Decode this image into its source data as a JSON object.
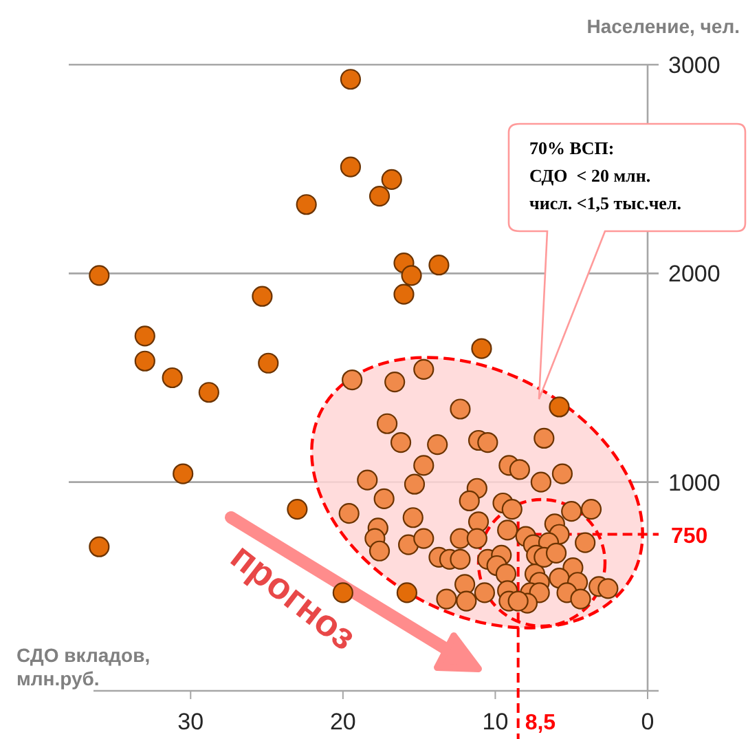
{
  "chart_data": {
    "type": "scatter",
    "xlabel": "СДО вкладов, млн.руб.",
    "ylabel": "Население, чел.",
    "xlim": [
      38,
      0
    ],
    "xticks": [
      30,
      20,
      10,
      0
    ],
    "ylim": [
      0,
      3000
    ],
    "yticks": [
      1000,
      2000,
      3000
    ],
    "grid": "y",
    "marker": "circle",
    "annotations": [
      "70% ВСП:",
      "СДО  < 20 млн.",
      "числ. <1,5 тыс.чел.",
      "прогноз"
    ],
    "ref_lines": [
      {
        "axis": "x",
        "value": 8.5,
        "label": "8,5",
        "color": "#ff0000",
        "line_style": "dashed"
      },
      {
        "axis": "y",
        "value": 750,
        "label": "750",
        "color": "#ff0000",
        "line_style": "dashed"
      }
    ],
    "series": [
      {
        "color": "#e36c09",
        "x": [
          19.5,
          19.5,
          16.8,
          17.6,
          22.4,
          36.0,
          16.0,
          13.7,
          15.5,
          16.0,
          25.3,
          33.0,
          33.0,
          24.9,
          31.2,
          10.9,
          28.8,
          5.8,
          30.5,
          23.0,
          36.0,
          20.0,
          15.8
        ],
        "values": [
          2930,
          2510,
          2450,
          2370,
          2330,
          1990,
          2050,
          2040,
          1990,
          1900,
          1890,
          1700,
          1580,
          1570,
          1500,
          1640,
          1430,
          1360,
          1040,
          870,
          690,
          470,
          470
        ]
      },
      {
        "color": "#f08a4b",
        "x": [
          19.4,
          16.6,
          14.7,
          12.3,
          17.1,
          16.2,
          13.8,
          11.1,
          10.5,
          6.8,
          14.7,
          9.1,
          8.4,
          5.6,
          18.4,
          15.3,
          7.0,
          19.6,
          17.3,
          11.2,
          11.7,
          9.5,
          8.9,
          15.4,
          17.7,
          17.9,
          17.6,
          15.7,
          14.7,
          11.1,
          12.3,
          9.2,
          8.0,
          6.1,
          5.0,
          3.7,
          5.8,
          4.1,
          7.5,
          6.5,
          7.3,
          13.7,
          13.0,
          12.3,
          10.5,
          9.6,
          9.9,
          9.3,
          4.9,
          5.8,
          4.6,
          7.4,
          7.1,
          12.0,
          10.7,
          9.2,
          7.7,
          7.1,
          5.3,
          4.4,
          3.2,
          2.6,
          13.2,
          11.9,
          9.1,
          7.9,
          8.5,
          6.8,
          6.0,
          11.2
        ],
        "values": [
          1490,
          1480,
          1540,
          1350,
          1280,
          1190,
          1180,
          1200,
          1190,
          1210,
          1080,
          1080,
          1060,
          1040,
          1010,
          990,
          1000,
          850,
          920,
          970,
          910,
          900,
          870,
          830,
          780,
          730,
          670,
          700,
          730,
          810,
          730,
          770,
          740,
          800,
          860,
          870,
          750,
          710,
          700,
          710,
          650,
          640,
          630,
          630,
          630,
          650,
          600,
          560,
          590,
          540,
          520,
          560,
          520,
          510,
          470,
          480,
          470,
          470,
          470,
          440,
          500,
          490,
          440,
          430,
          430,
          420,
          430,
          640,
          660,
          730
        ]
      }
    ]
  }
}
